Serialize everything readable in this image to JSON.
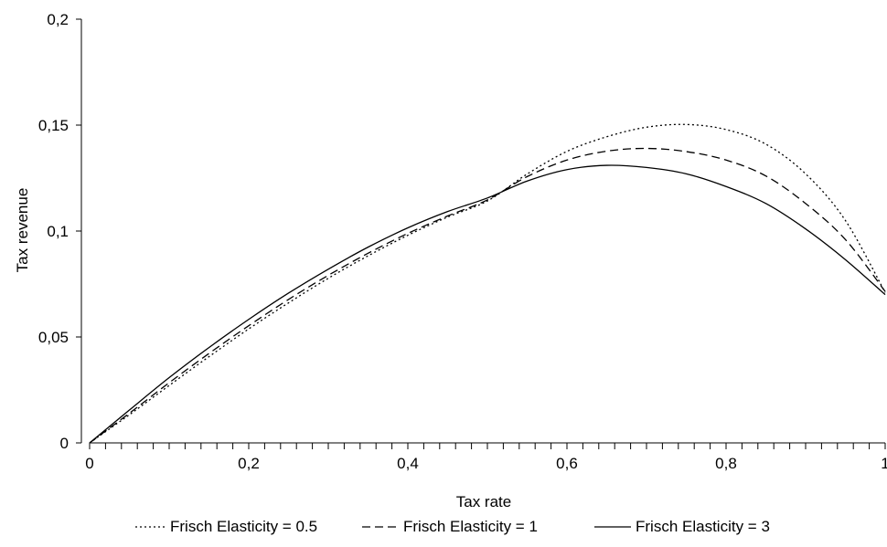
{
  "chart_data": {
    "type": "line",
    "title": "",
    "xlabel": "Tax rate",
    "ylabel": "Tax revenue",
    "xlim": [
      0,
      1
    ],
    "ylim": [
      0,
      0.2
    ],
    "x_ticks": [
      {
        "value": 0,
        "label": "0"
      },
      {
        "value": 0.2,
        "label": "0,2"
      },
      {
        "value": 0.4,
        "label": "0,4"
      },
      {
        "value": 0.6,
        "label": "0,6"
      },
      {
        "value": 0.8,
        "label": "0,8"
      },
      {
        "value": 1,
        "label": "1"
      }
    ],
    "y_ticks": [
      {
        "value": 0,
        "label": "0"
      },
      {
        "value": 0.05,
        "label": "0,05"
      },
      {
        "value": 0.1,
        "label": "0,1"
      },
      {
        "value": 0.15,
        "label": "0,15"
      },
      {
        "value": 0.2,
        "label": "0,2"
      }
    ],
    "x_minor_tick_step": 0.02,
    "grid": false,
    "legend_position": "bottom",
    "series": [
      {
        "name": "Frisch Elasticity = 0.5",
        "line_style": "dotted",
        "color": "#000000",
        "x": [
          0,
          0.05,
          0.1,
          0.15,
          0.2,
          0.25,
          0.3,
          0.35,
          0.4,
          0.45,
          0.5,
          0.55,
          0.6,
          0.65,
          0.7,
          0.75,
          0.8,
          0.85,
          0.9,
          0.95,
          1
        ],
        "y": [
          0,
          0.0133,
          0.0271,
          0.0407,
          0.0538,
          0.0661,
          0.0777,
          0.0883,
          0.098,
          0.1066,
          0.1142,
          0.1269,
          0.1376,
          0.1445,
          0.149,
          0.1503,
          0.1479,
          0.141,
          0.127,
          0.105,
          0.071
        ]
      },
      {
        "name": "Frisch Elasticity = 1",
        "line_style": "dashed",
        "color": "#000000",
        "x": [
          0,
          0.05,
          0.1,
          0.15,
          0.2,
          0.25,
          0.3,
          0.35,
          0.4,
          0.45,
          0.5,
          0.55,
          0.6,
          0.65,
          0.7,
          0.75,
          0.8,
          0.85,
          0.9,
          0.95,
          1
        ],
        "y": [
          0,
          0.014,
          0.0284,
          0.0422,
          0.0553,
          0.0677,
          0.0791,
          0.0895,
          0.0989,
          0.1071,
          0.1147,
          0.1257,
          0.1335,
          0.1377,
          0.139,
          0.1375,
          0.1335,
          0.126,
          0.113,
          0.096,
          0.0715
        ]
      },
      {
        "name": "Frisch Elasticity = 3",
        "line_style": "solid",
        "color": "#000000",
        "x": [
          0,
          0.05,
          0.1,
          0.15,
          0.2,
          0.25,
          0.3,
          0.35,
          0.4,
          0.45,
          0.5,
          0.55,
          0.6,
          0.65,
          0.7,
          0.75,
          0.8,
          0.85,
          0.9,
          0.95,
          1
        ],
        "y": [
          0,
          0.0155,
          0.0308,
          0.045,
          0.0583,
          0.0707,
          0.082,
          0.0924,
          0.1015,
          0.1092,
          0.1156,
          0.1236,
          0.129,
          0.131,
          0.13,
          0.127,
          0.121,
          0.113,
          0.101,
          0.0865,
          0.07
        ]
      }
    ]
  }
}
